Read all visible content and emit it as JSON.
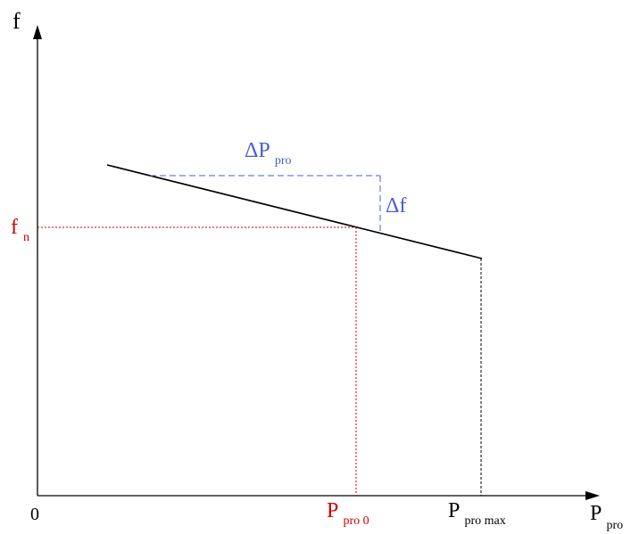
{
  "colors": {
    "axis": "#000000",
    "droop_line": "#000000",
    "operating_point": "#cc0000",
    "delta_annotation": "#4a5fd0",
    "pmax_guide": "#000000"
  },
  "axes": {
    "y_label": "f",
    "x_label": {
      "main": "P",
      "sub": "pro"
    },
    "origin_label": "0"
  },
  "operating_point": {
    "y_label": {
      "main": "f",
      "sub": "n"
    },
    "x_label": {
      "main": "P",
      "sub": "pro 0"
    }
  },
  "pmax": {
    "x_label": {
      "main": "P",
      "sub": "pro max"
    }
  },
  "delta_p": {
    "main": "ΔP",
    "sub": "pro"
  },
  "delta_f": "Δf"
}
